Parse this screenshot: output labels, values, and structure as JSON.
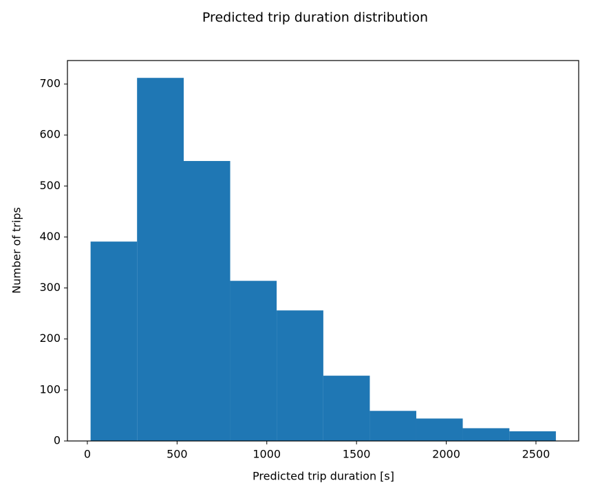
{
  "chart_data": {
    "type": "histogram",
    "title": "Predicted trip duration distribution",
    "xlabel": "Predicted trip duration [s]",
    "ylabel": "Number of trips",
    "bins": [
      18,
      277,
      537,
      796,
      1055,
      1315,
      1574,
      1833,
      2092,
      2352,
      2611
    ],
    "values": [
      391,
      712,
      549,
      314,
      256,
      128,
      59,
      44,
      25,
      19
    ],
    "color": "#1f77b4",
    "xlim": [
      -111,
      2738
    ],
    "ylim": [
      0,
      746
    ],
    "xticks": [
      0,
      500,
      1000,
      1500,
      2000,
      2500
    ],
    "yticks": [
      0,
      100,
      200,
      300,
      400,
      500,
      600,
      700
    ]
  }
}
